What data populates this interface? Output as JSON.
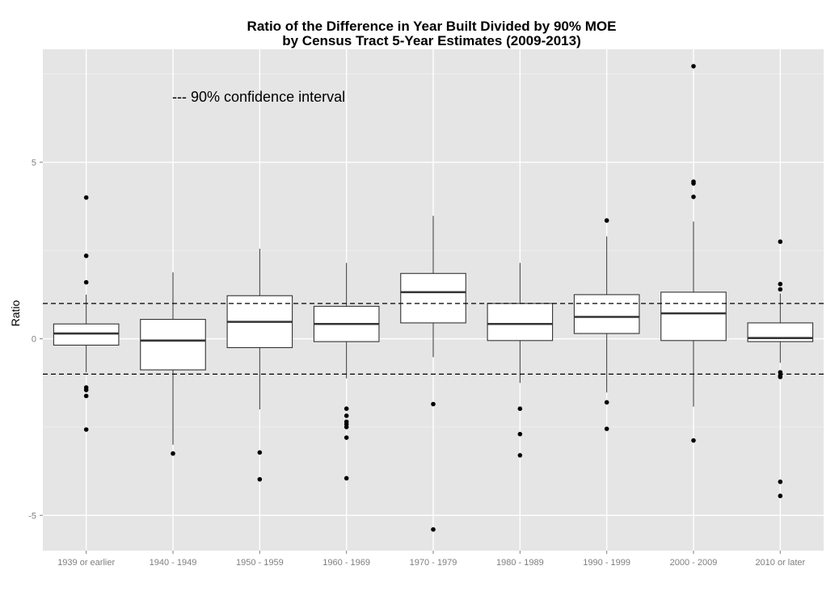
{
  "chart_data": {
    "type": "boxplot",
    "title": "Ratio of the Difference in Year Built Divided by 90% MOE",
    "subtitle": "by Census Tract 5-Year Estimates (2009-2013)",
    "xlabel": "",
    "ylabel": "Ratio",
    "ylim": [
      -6.0,
      8.2
    ],
    "yticks": [
      -5,
      0,
      5
    ],
    "grid": true,
    "annotation": "--- 90% confidence interval",
    "reference_lines": [
      1,
      -1
    ],
    "categories": [
      "1939 or earlier",
      "1940 - 1949",
      "1950 - 1959",
      "1960 - 1969",
      "1970 - 1979",
      "1980 - 1989",
      "1990 - 1999",
      "2000 - 2009",
      "2010 or later"
    ],
    "boxes": [
      {
        "category": "1939 or earlier",
        "whisker_low": -0.95,
        "q1": -0.18,
        "median": 0.15,
        "q3": 0.42,
        "whisker_high": 1.25,
        "outliers": [
          4.0,
          2.35,
          1.6,
          -1.38,
          -1.45,
          -1.62,
          -2.57
        ]
      },
      {
        "category": "1940 - 1949",
        "whisker_low": -3.0,
        "q1": -0.88,
        "median": -0.05,
        "q3": 0.55,
        "whisker_high": 1.88,
        "outliers": [
          -3.25
        ]
      },
      {
        "category": "1950 - 1959",
        "whisker_low": -2.0,
        "q1": -0.25,
        "median": 0.48,
        "q3": 1.22,
        "whisker_high": 2.55,
        "outliers": [
          -3.22,
          -3.98
        ]
      },
      {
        "category": "1960 - 1969",
        "whisker_low": -1.12,
        "q1": -0.08,
        "median": 0.42,
        "q3": 0.92,
        "whisker_high": 2.15,
        "outliers": [
          -1.98,
          -2.18,
          -2.35,
          -2.42,
          -2.5,
          -2.8,
          -3.95
        ]
      },
      {
        "category": "1970 - 1979",
        "whisker_low": -0.52,
        "q1": 0.45,
        "median": 1.32,
        "q3": 1.85,
        "whisker_high": 3.48,
        "outliers": [
          -1.85,
          -5.4
        ]
      },
      {
        "category": "1980 - 1989",
        "whisker_low": -1.25,
        "q1": -0.05,
        "median": 0.42,
        "q3": 1.0,
        "whisker_high": 2.15,
        "outliers": [
          -1.98,
          -2.7,
          -3.3
        ]
      },
      {
        "category": "1990 - 1999",
        "whisker_low": -1.52,
        "q1": 0.15,
        "median": 0.62,
        "q3": 1.25,
        "whisker_high": 2.9,
        "outliers": [
          3.35,
          -1.8,
          -2.55
        ]
      },
      {
        "category": "2000 - 2009",
        "whisker_low": -1.92,
        "q1": -0.05,
        "median": 0.72,
        "q3": 1.32,
        "whisker_high": 3.32,
        "outliers": [
          7.72,
          4.45,
          4.4,
          4.02,
          -2.88
        ]
      },
      {
        "category": "2010 or later",
        "whisker_low": -0.68,
        "q1": -0.08,
        "median": 0.02,
        "q3": 0.45,
        "whisker_high": 1.28,
        "outliers": [
          2.75,
          1.55,
          1.4,
          -0.95,
          -1.05,
          -1.08,
          -4.05,
          -4.45
        ]
      }
    ]
  }
}
